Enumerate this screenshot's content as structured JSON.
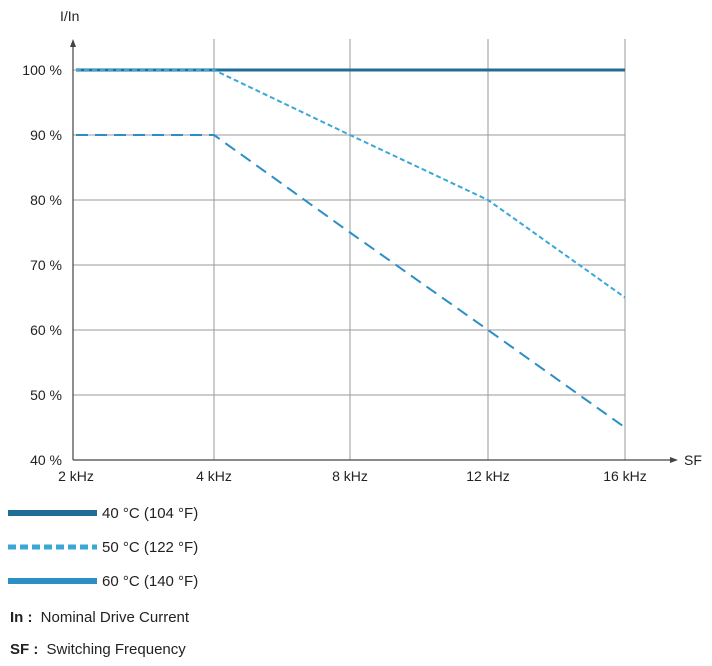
{
  "chart_data": {
    "type": "line",
    "ylabel": "I/In",
    "xlabel": "SF",
    "categories": [
      "2 kHz",
      "4 kHz",
      "8 kHz",
      "12 kHz",
      "16 kHz"
    ],
    "y_ticks": [
      "100 %",
      "90 %",
      "80 %",
      "70 %",
      "60 %",
      "50 %",
      "40 %"
    ],
    "ylim": [
      40,
      100
    ],
    "grid": true,
    "series": [
      {
        "name": "40 °C (104 °F)",
        "values": [
          100,
          100,
          100,
          100,
          100
        ],
        "color": "#1f6e96",
        "style": "solid"
      },
      {
        "name": "50 °C (122 °F)",
        "values": [
          100,
          100,
          90,
          80,
          65
        ],
        "color": "#3aa7d6",
        "style": "short-dash"
      },
      {
        "name": "60 °C (140 °F)",
        "values": [
          90,
          90,
          75,
          60,
          45
        ],
        "color": "#2b8fc6",
        "style": "long-dash"
      }
    ],
    "legend_position": "bottom-left",
    "notes": [
      {
        "term": "In :",
        "definition": "Nominal Drive Current"
      },
      {
        "term": "SF :",
        "definition": "Switching Frequency"
      }
    ]
  }
}
